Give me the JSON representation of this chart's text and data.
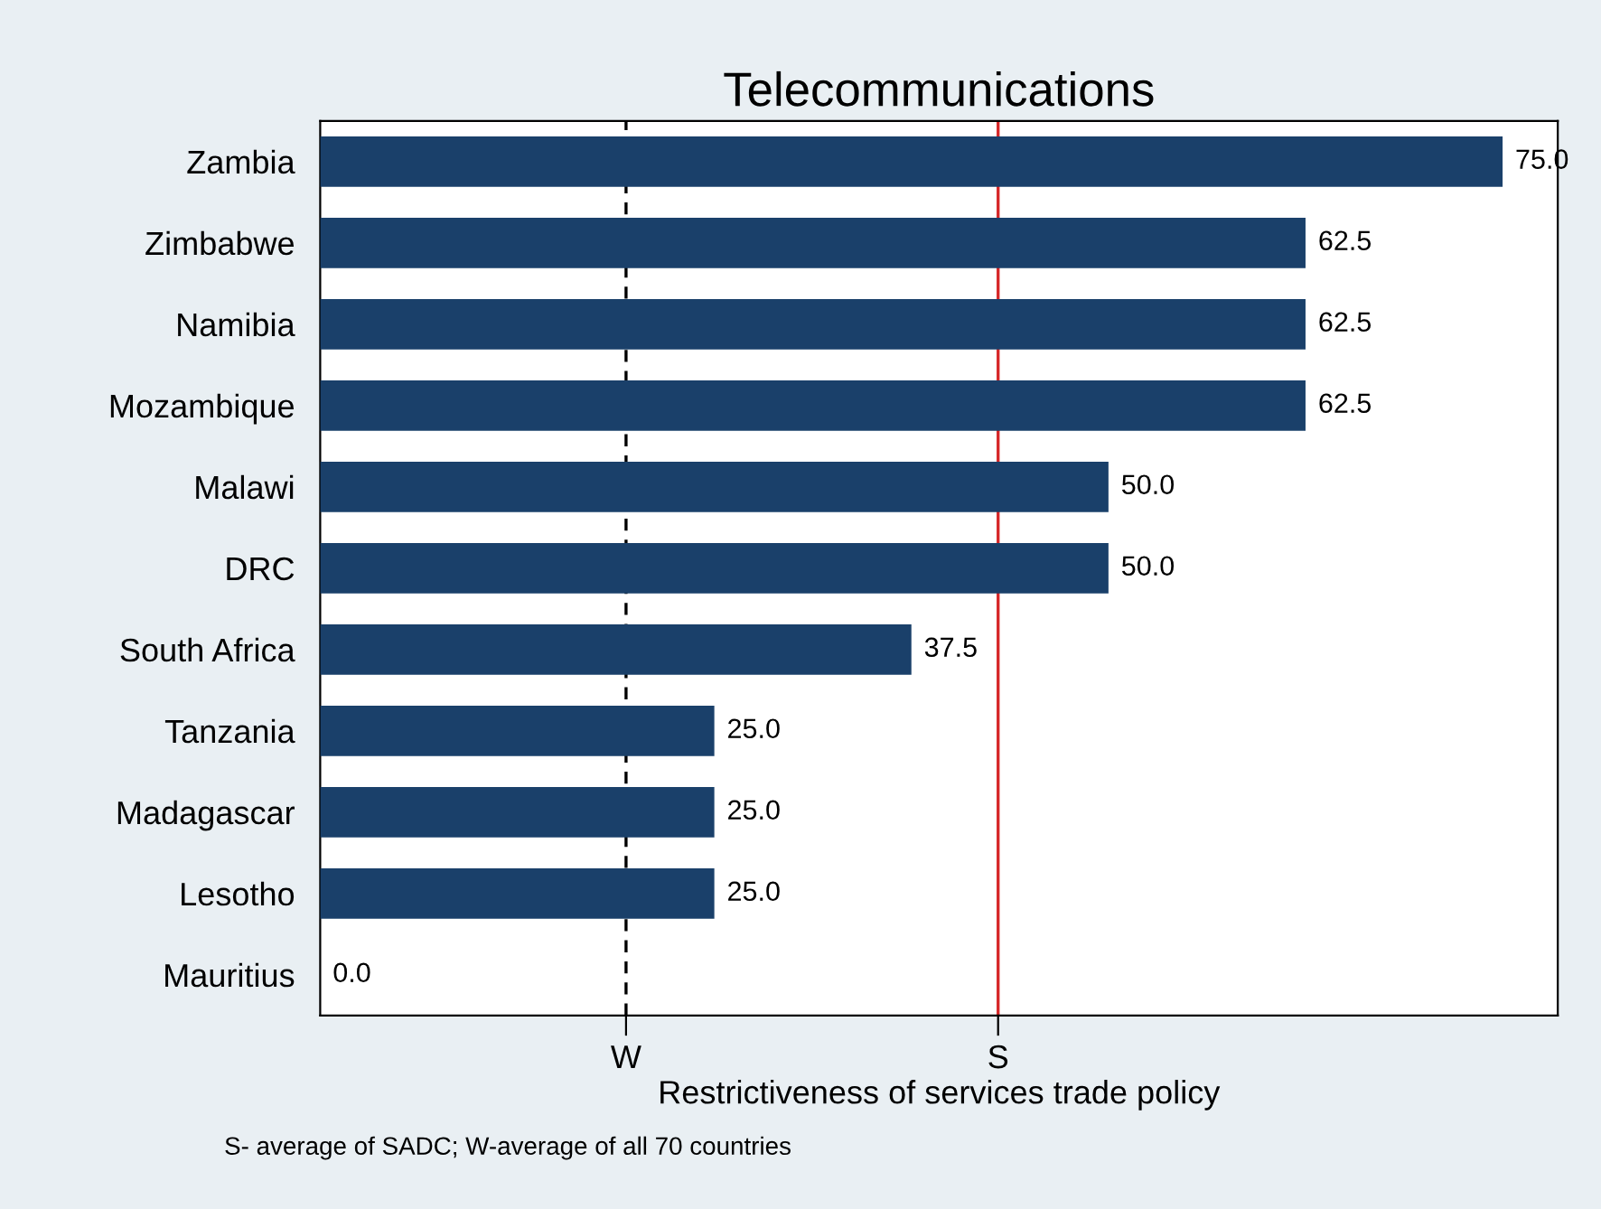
{
  "chart_data": {
    "type": "bar",
    "orientation": "horizontal",
    "title": "Telecommunications",
    "xlabel": "Restrictiveness of services trade policy",
    "categories": [
      "Zambia",
      "Zimbabwe",
      "Namibia",
      "Mozambique",
      "Malawi",
      "DRC",
      "South Africa",
      "Tanzania",
      "Madagascar",
      "Lesotho",
      "Mauritius"
    ],
    "values": [
      75.0,
      62.5,
      62.5,
      62.5,
      50.0,
      50.0,
      37.5,
      25.0,
      25.0,
      25.0,
      0.0
    ],
    "color": "#1a406a",
    "value_labels": [
      "75.0",
      "62.5",
      "62.5",
      "62.5",
      "50.0",
      "50.0",
      "37.5",
      "25.0",
      "25.0",
      "25.0",
      "0.0"
    ],
    "xlim": [
      0,
      78.5
    ],
    "ref_lines": [
      {
        "axis": "x",
        "value": 19.4,
        "label": "W",
        "color": "#000000",
        "line_style": "dashed"
      },
      {
        "axis": "x",
        "value": 43,
        "label": "S",
        "color": "#d62728",
        "line_style": "solid"
      }
    ],
    "annotations": [
      "S- average of SADC; W-average of all 70 countries"
    ],
    "grid": false,
    "legend": false
  }
}
